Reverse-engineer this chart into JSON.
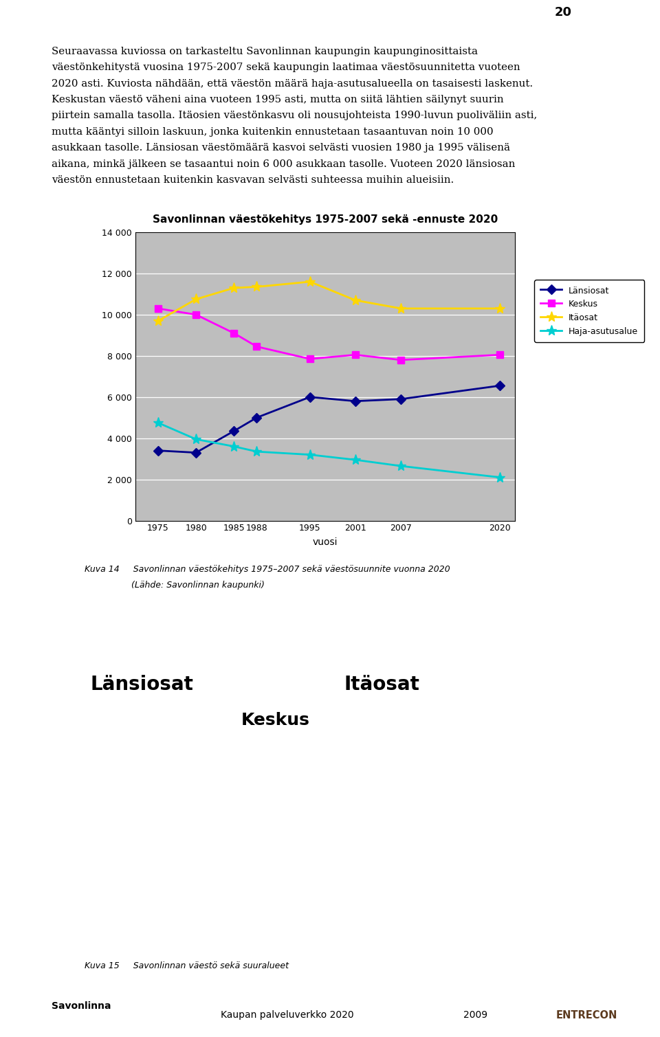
{
  "title": "Savonlinnan väestökehitys 1975-2007 sekä -ennuste 2020",
  "xlabel": "vuosi",
  "x_ticks": [
    1975,
    1980,
    1985,
    1988,
    1995,
    2001,
    2007,
    2020
  ],
  "ylim": [
    0,
    14000
  ],
  "yticks": [
    0,
    2000,
    4000,
    6000,
    8000,
    10000,
    12000,
    14000
  ],
  "series": {
    "Länsiosat": {
      "x": [
        1975,
        1980,
        1985,
        1988,
        1995,
        2001,
        2007,
        2020
      ],
      "y": [
        3400,
        3300,
        4350,
        5000,
        6000,
        5800,
        5900,
        6550
      ],
      "color": "#00008B",
      "marker": "D",
      "markersize": 7
    },
    "Keskus": {
      "x": [
        1975,
        1980,
        1985,
        1988,
        1995,
        2001,
        2007,
        2020
      ],
      "y": [
        10300,
        10000,
        9100,
        8450,
        7850,
        8050,
        7800,
        8050
      ],
      "color": "#FF00FF",
      "marker": "s",
      "markersize": 7
    },
    "Itäosat": {
      "x": [
        1975,
        1980,
        1985,
        1988,
        1995,
        2001,
        2007,
        2020
      ],
      "y": [
        9700,
        10750,
        11300,
        11350,
        11600,
        10700,
        10300,
        10300
      ],
      "color": "#FFD700",
      "marker": "*",
      "markersize": 11
    },
    "Haja-asutusalue": {
      "x": [
        1975,
        1980,
        1985,
        1988,
        1995,
        2001,
        2007,
        2020
      ],
      "y": [
        4750,
        3950,
        3600,
        3350,
        3200,
        2950,
        2650,
        2100
      ],
      "color": "#00CED1",
      "marker": "*",
      "markersize": 11
    }
  },
  "legend_order": [
    "Länsiosat",
    "Keskus",
    "Itäosat",
    "Haja-asutusalue"
  ],
  "plot_bg": "#BEBEBE",
  "figure_bg": "#FFFFFF",
  "top_bar_left_color": "#A0A0A0",
  "top_bar_right_color": "#8B0000",
  "footer_bg": "#BEB09A",
  "text_block": "Seuraavassa kuviossa on tarkasteltu Savonlinnan kaupungin kaupunginosittaista väestönkehitystä vuosina 1975-2007 sekä kaupungin laatimaa väestösuunnitetta vuoteen 2020 asti. Kuviosta nähdään, että väestön määrä haja-asutusalueella on tasaisesti laskenut. Keskustan väestö väheni aina vuoteen 1995 asti, mutta on siitä lähtien säilynyt suurin piirtein samalla tasolla. Itäosien väestönkasvu oli nousujohteista 1990-luvun puoliväliin asti, mutta kääntyi silloin laskuun, jonka kuitenkin ennustetaan tasaantuvan noin 10 000 asukkaan tasolle. Länsiosan väestömäärä kasvoi selvästi vuosien 1980 ja 1995 välisenä aikana, minkä jälkeen se tasaantui noin 6 000 asukkaan tasolle. Vuoteen 2020 länsiosan väestön ennustetaan kuitenkin kasvavan selvästi suhteessa muihin alueisiin.",
  "caption14_line1": "Kuva 14     Savonlinnan väestökehitys 1975–2007 sekä väestösuunnite vuonna 2020",
  "caption14_line2": "                 (Lähde: Savonlinnan kaupunki)",
  "caption15": "Kuva 15     Savonlinnan väestö sekä suuralueet",
  "page_number": "20",
  "footer_left": "Savonlinna",
  "footer_center": "Kaupan palveluverkko 2020",
  "footer_year": "2009",
  "footer_right": "ENTRECON"
}
